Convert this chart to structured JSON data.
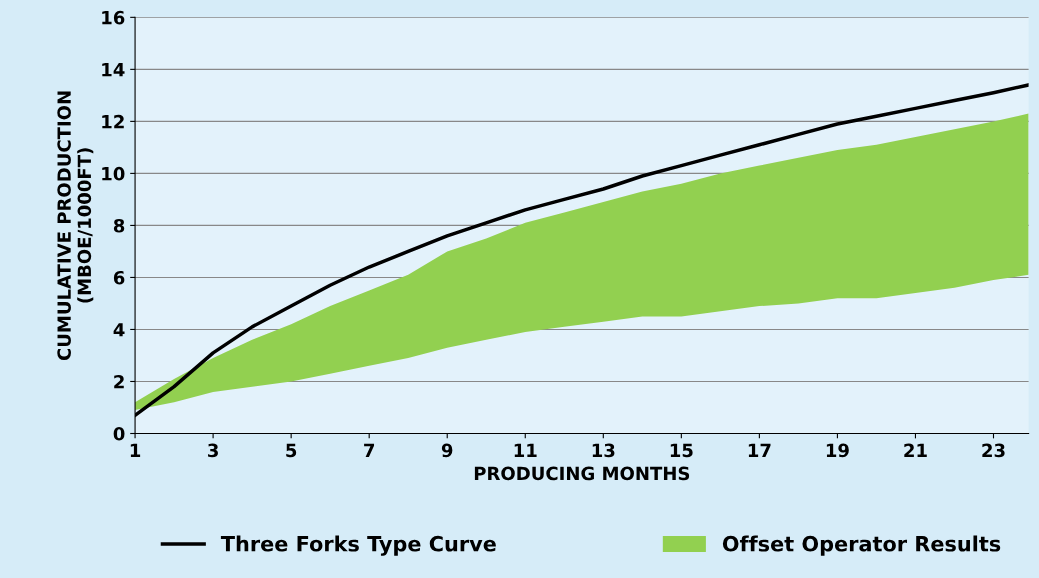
{
  "chart_data": {
    "type": "line",
    "xlabel": "PRODUCING MONTHS",
    "ylabel": "CUMULATIVE PRODUCTION\n(MBOE/1000FT)",
    "x": [
      1,
      2,
      3,
      4,
      5,
      6,
      7,
      8,
      9,
      10,
      11,
      12,
      13,
      14,
      15,
      16,
      17,
      18,
      19,
      20,
      21,
      22,
      23,
      23.9
    ],
    "series": [
      {
        "name": "Offset Operator Results",
        "color": "#92d050",
        "values": [
          null,
          null,
          null,
          null,
          null,
          null,
          null,
          null,
          null,
          null,
          null,
          null,
          null,
          null,
          null,
          null,
          null,
          null,
          null,
          null,
          null,
          null,
          null,
          null
        ],
        "upper": [
          1.2,
          2.1,
          2.9,
          3.6,
          4.2,
          4.9,
          5.5,
          6.1,
          7.0,
          7.5,
          8.1,
          8.5,
          8.9,
          9.3,
          9.6,
          10.0,
          10.3,
          10.6,
          10.9,
          11.1,
          11.4,
          11.7,
          12.0,
          12.3
        ],
        "lower": [
          0.9,
          1.2,
          1.6,
          1.8,
          2.0,
          2.3,
          2.6,
          2.9,
          3.3,
          3.6,
          3.9,
          4.1,
          4.3,
          4.5,
          4.5,
          4.7,
          4.9,
          5.0,
          5.2,
          5.2,
          5.4,
          5.6,
          5.9,
          6.1
        ]
      },
      {
        "name": "Three Forks Type Curve",
        "color": "#000000",
        "values": [
          0.7,
          1.8,
          3.1,
          4.1,
          4.9,
          5.7,
          6.4,
          7.0,
          7.6,
          8.1,
          8.6,
          9.0,
          9.4,
          9.9,
          10.3,
          10.7,
          11.1,
          11.5,
          11.9,
          12.2,
          12.5,
          12.8,
          13.1,
          13.4
        ]
      }
    ],
    "xlim": [
      1,
      23.9
    ],
    "xticks": [
      1,
      3,
      5,
      7,
      9,
      11,
      13,
      15,
      17,
      19,
      21,
      23
    ],
    "ylim": [
      0,
      16
    ],
    "yticks": [
      0,
      2,
      4,
      6,
      8,
      10,
      12,
      14,
      16
    ],
    "grid": "y",
    "legend": "bottom"
  }
}
